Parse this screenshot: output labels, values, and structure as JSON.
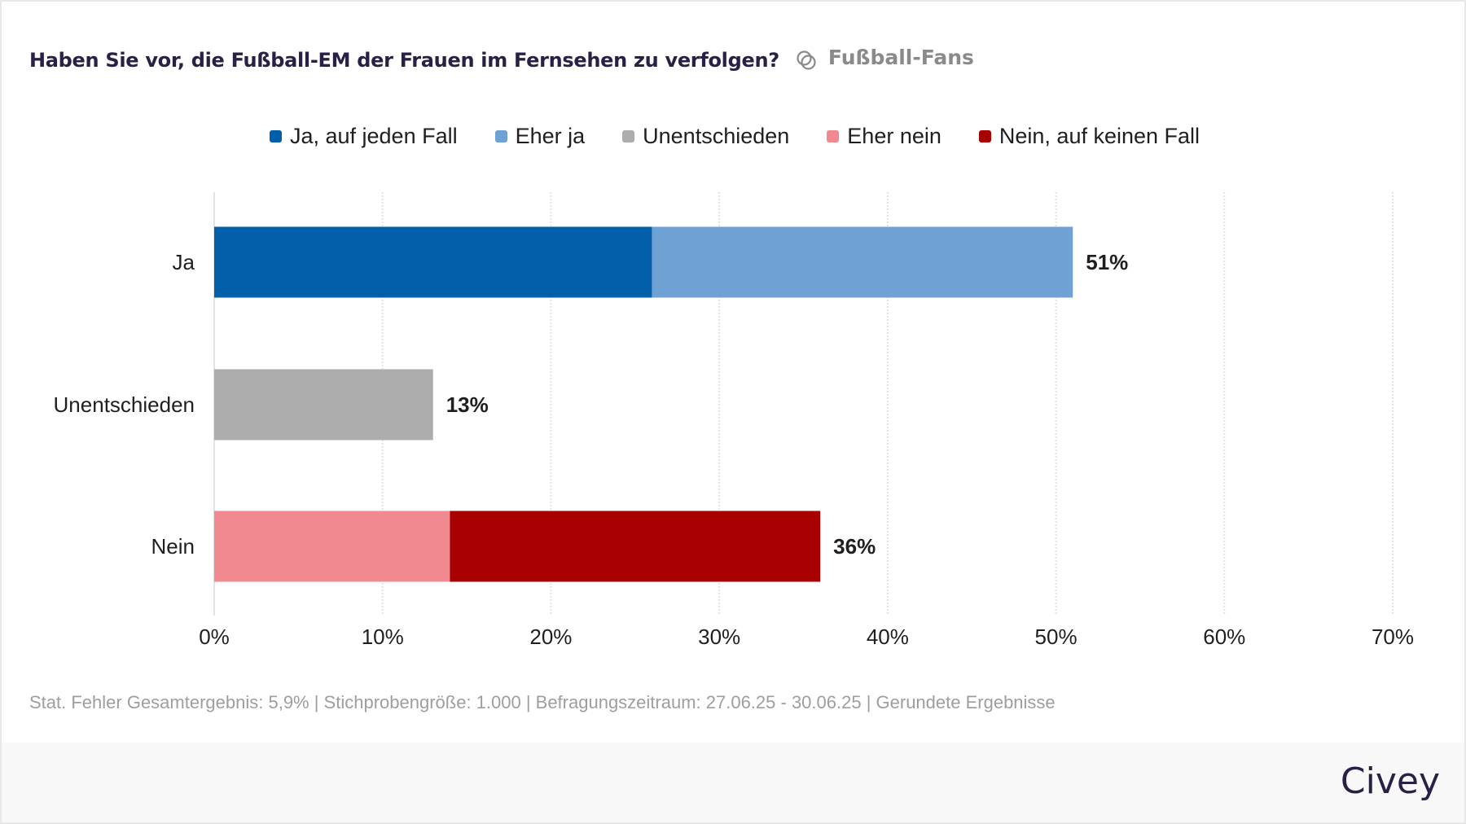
{
  "header": {
    "title": "Haben Sie vor, die Fußball-EM der Frauen im Fernsehen zu verfolgen?",
    "audience_icon": "interlocked-rings-icon",
    "audience_label": "Fußball-Fans"
  },
  "footer": {
    "note": "Stat. Fehler Gesamtergebnis: 5,9% | Stichprobengröße: 1.000 | Befragungszeitraum: 27.06.25 - 30.06.25 | Gerundete Ergebnisse",
    "brand": "Civey"
  },
  "chart_data": {
    "type": "bar",
    "orientation": "horizontal",
    "stacked": true,
    "title": "Haben Sie vor, die Fußball-EM der Frauen im Fernsehen zu verfolgen?",
    "categories": [
      "Ja",
      "Unentschieden",
      "Nein"
    ],
    "series": [
      {
        "name": "Ja, auf jeden Fall",
        "color": "#005fa8",
        "values": [
          26,
          0,
          0
        ]
      },
      {
        "name": "Eher ja",
        "color": "#70a1d5",
        "values": [
          25,
          0,
          0
        ]
      },
      {
        "name": "Unentschieden",
        "color": "#adadad",
        "values": [
          0,
          13,
          0
        ]
      },
      {
        "name": "Eher nein",
        "color": "#f08a90",
        "values": [
          0,
          0,
          14
        ]
      },
      {
        "name": "Nein, auf keinen Fall",
        "color": "#a80000",
        "values": [
          0,
          0,
          22
        ]
      }
    ],
    "totals": [
      "51%",
      "13%",
      "36%"
    ],
    "xlabel": "",
    "ylabel": "",
    "xlim": [
      0,
      70
    ],
    "xticks": [
      0,
      10,
      20,
      30,
      40,
      50,
      60,
      70
    ],
    "xtick_labels": [
      "0%",
      "10%",
      "20%",
      "30%",
      "40%",
      "50%",
      "60%",
      "70%"
    ],
    "grid": true,
    "legend_position": "top-center"
  }
}
